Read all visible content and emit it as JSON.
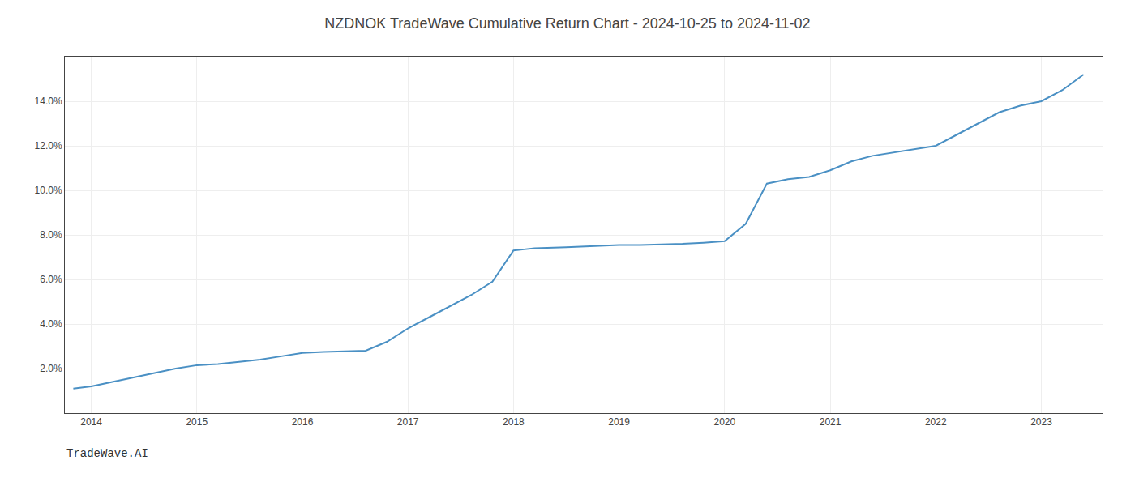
{
  "chart_data": {
    "type": "line",
    "title": "NZDNOK TradeWave Cumulative Return Chart - 2024-10-25 to 2024-11-02",
    "watermark": "TradeWave.AI",
    "color": "#4a90c4",
    "x": [
      2013.83,
      2014.0,
      2014.2,
      2014.4,
      2014.6,
      2014.8,
      2015.0,
      2015.2,
      2015.4,
      2015.6,
      2015.8,
      2016.0,
      2016.2,
      2016.4,
      2016.6,
      2016.8,
      2017.0,
      2017.2,
      2017.4,
      2017.6,
      2017.8,
      2018.0,
      2018.1,
      2018.2,
      2018.5,
      2018.8,
      2019.0,
      2019.2,
      2019.4,
      2019.6,
      2019.8,
      2020.0,
      2020.2,
      2020.4,
      2020.6,
      2020.8,
      2021.0,
      2021.2,
      2021.4,
      2021.6,
      2021.8,
      2022.0,
      2022.2,
      2022.4,
      2022.6,
      2022.8,
      2023.0,
      2023.2,
      2023.4
    ],
    "values": [
      1.1,
      1.2,
      1.4,
      1.6,
      1.8,
      2.0,
      2.15,
      2.2,
      2.3,
      2.4,
      2.55,
      2.7,
      2.75,
      2.78,
      2.8,
      3.2,
      3.8,
      4.3,
      4.8,
      5.3,
      5.9,
      7.3,
      7.35,
      7.4,
      7.45,
      7.5,
      7.55,
      7.55,
      7.57,
      7.6,
      7.65,
      7.72,
      8.5,
      10.3,
      10.5,
      10.6,
      10.9,
      11.3,
      11.55,
      11.7,
      11.85,
      12.0,
      12.5,
      13.0,
      13.5,
      13.8,
      14.0,
      14.5,
      15.2
    ],
    "xlim": [
      2013.75,
      2023.58
    ],
    "xticks": [
      2014,
      2015,
      2016,
      2017,
      2018,
      2019,
      2020,
      2021,
      2022,
      2023
    ],
    "ylim": [
      0,
      16
    ],
    "yticks": [
      {
        "value": 2.0,
        "label": "2.0%"
      },
      {
        "value": 4.0,
        "label": "4.0%"
      },
      {
        "value": 6.0,
        "label": "6.0%"
      },
      {
        "value": 8.0,
        "label": "8.0%"
      },
      {
        "value": 10.0,
        "label": "10.0%"
      },
      {
        "value": 12.0,
        "label": "12.0%"
      },
      {
        "value": 14.0,
        "label": "14.0%"
      }
    ],
    "grid": true
  }
}
